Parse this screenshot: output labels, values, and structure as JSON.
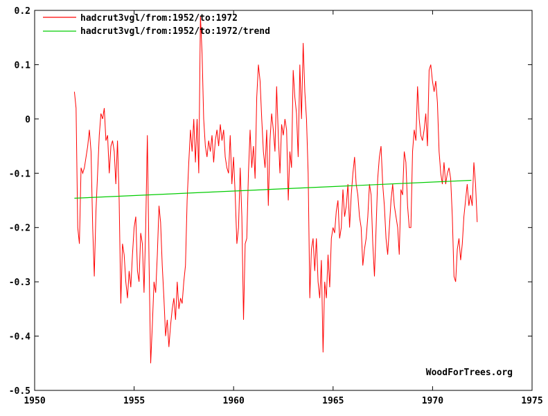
{
  "chart_data": {
    "type": "line",
    "title": "",
    "xlabel": "",
    "ylabel": "",
    "xlim": [
      1950,
      1975
    ],
    "ylim": [
      -0.5,
      0.2
    ],
    "x_ticks": [
      1950,
      1955,
      1960,
      1965,
      1970,
      1975
    ],
    "y_ticks": [
      0.2,
      0.1,
      0,
      -0.1,
      -0.2,
      -0.3,
      -0.4,
      -0.5
    ],
    "y_tick_labels": [
      "0.2",
      "0.1",
      "0",
      "-0.1",
      "-0.2",
      "-0.3",
      "-0.4",
      "-0.5"
    ],
    "grid": false,
    "legend_position": "top-left",
    "colors": {
      "series": "#ff0000",
      "trend": "#00cc00",
      "axes": "#000000"
    },
    "watermark": "WoodForTrees.org",
    "series": [
      {
        "name": "hadcrut3vgl/from:1952/to:1972",
        "color": "#ff0000",
        "x_start": 1952.0,
        "x_step": 0.0833,
        "values": [
          0.05,
          0.02,
          -0.2,
          -0.23,
          -0.09,
          -0.1,
          -0.09,
          -0.07,
          -0.05,
          -0.02,
          -0.06,
          -0.2,
          -0.29,
          -0.17,
          -0.1,
          -0.03,
          0.01,
          0.0,
          0.02,
          -0.04,
          -0.03,
          -0.1,
          -0.05,
          -0.04,
          -0.06,
          -0.12,
          -0.04,
          -0.15,
          -0.34,
          -0.23,
          -0.25,
          -0.3,
          -0.33,
          -0.28,
          -0.31,
          -0.25,
          -0.2,
          -0.18,
          -0.28,
          -0.3,
          -0.21,
          -0.23,
          -0.32,
          -0.2,
          -0.03,
          -0.26,
          -0.45,
          -0.38,
          -0.3,
          -0.32,
          -0.25,
          -0.16,
          -0.19,
          -0.27,
          -0.33,
          -0.4,
          -0.37,
          -0.42,
          -0.38,
          -0.35,
          -0.33,
          -0.37,
          -0.3,
          -0.35,
          -0.33,
          -0.34,
          -0.3,
          -0.27,
          -0.15,
          -0.08,
          -0.02,
          -0.06,
          0.0,
          -0.08,
          0.0,
          -0.1,
          0.19,
          0.12,
          0.0,
          -0.05,
          -0.07,
          -0.04,
          -0.06,
          -0.03,
          -0.08,
          -0.04,
          -0.02,
          -0.05,
          -0.01,
          -0.04,
          -0.02,
          -0.07,
          -0.09,
          -0.1,
          -0.03,
          -0.12,
          -0.07,
          -0.14,
          -0.23,
          -0.2,
          -0.09,
          -0.18,
          -0.37,
          -0.23,
          -0.22,
          -0.1,
          -0.02,
          -0.09,
          -0.05,
          -0.11,
          0.04,
          0.1,
          0.07,
          0.0,
          -0.06,
          -0.09,
          -0.02,
          -0.16,
          -0.04,
          0.01,
          -0.02,
          -0.06,
          0.06,
          -0.03,
          -0.1,
          -0.01,
          -0.03,
          0.0,
          -0.02,
          -0.15,
          -0.06,
          -0.09,
          0.09,
          0.04,
          0.01,
          -0.07,
          0.1,
          0.0,
          0.14,
          0.05,
          0.0,
          -0.1,
          -0.33,
          -0.24,
          -0.22,
          -0.28,
          -0.22,
          -0.3,
          -0.33,
          -0.26,
          -0.43,
          -0.3,
          -0.33,
          -0.25,
          -0.31,
          -0.22,
          -0.2,
          -0.21,
          -0.17,
          -0.15,
          -0.22,
          -0.2,
          -0.13,
          -0.18,
          -0.16,
          -0.12,
          -0.2,
          -0.14,
          -0.1,
          -0.07,
          -0.12,
          -0.14,
          -0.18,
          -0.2,
          -0.27,
          -0.24,
          -0.22,
          -0.18,
          -0.12,
          -0.14,
          -0.23,
          -0.29,
          -0.2,
          -0.11,
          -0.07,
          -0.05,
          -0.12,
          -0.16,
          -0.22,
          -0.25,
          -0.2,
          -0.15,
          -0.12,
          -0.16,
          -0.18,
          -0.2,
          -0.25,
          -0.13,
          -0.14,
          -0.06,
          -0.08,
          -0.16,
          -0.2,
          -0.2,
          -0.06,
          -0.02,
          -0.04,
          0.06,
          0.0,
          -0.03,
          -0.04,
          -0.02,
          0.01,
          -0.05,
          0.09,
          0.1,
          0.07,
          0.05,
          0.07,
          0.03,
          -0.06,
          -0.1,
          -0.12,
          -0.08,
          -0.12,
          -0.1,
          -0.09,
          -0.11,
          -0.18,
          -0.29,
          -0.3,
          -0.24,
          -0.22,
          -0.26,
          -0.23,
          -0.18,
          -0.15,
          -0.12,
          -0.16,
          -0.14,
          -0.16,
          -0.08,
          -0.12,
          -0.19
        ]
      },
      {
        "name": "hadcrut3vgl/from:1952/to:1972/trend",
        "color": "#00cc00",
        "x": [
          1952.0,
          1971.95
        ],
        "values": [
          -0.146,
          -0.113
        ]
      }
    ]
  }
}
